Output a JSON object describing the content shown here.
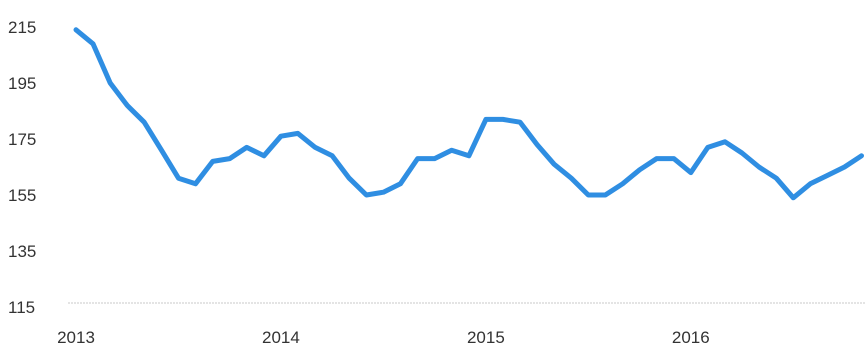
{
  "chart_data": {
    "type": "line",
    "title": "",
    "xlabel": "",
    "ylabel": "",
    "grid": false,
    "legend": "none",
    "ylim": [
      115,
      215
    ],
    "xlim": [
      2013,
      2016.85
    ],
    "y_ticks": [
      215,
      195,
      175,
      155,
      135,
      115
    ],
    "x_ticks": [
      2013,
      2014,
      2015,
      2016
    ],
    "series": [
      {
        "color": "#2f8ee2",
        "x": [
          2013.0,
          2013.083,
          2013.167,
          2013.25,
          2013.333,
          2013.417,
          2013.5,
          2013.583,
          2013.667,
          2013.75,
          2013.833,
          2013.917,
          2014.0,
          2014.083,
          2014.167,
          2014.25,
          2014.333,
          2014.417,
          2014.5,
          2014.583,
          2014.667,
          2014.75,
          2014.833,
          2014.917,
          2015.0,
          2015.083,
          2015.167,
          2015.25,
          2015.333,
          2015.417,
          2015.5,
          2015.583,
          2015.667,
          2015.75,
          2015.833,
          2015.917,
          2016.0,
          2016.083,
          2016.167,
          2016.25,
          2016.333,
          2016.417,
          2016.5,
          2016.583,
          2016.667,
          2016.75,
          2016.833
        ],
        "y": [
          214,
          209,
          195,
          187,
          181,
          171,
          161,
          159,
          167,
          168,
          172,
          169,
          176,
          177,
          172,
          169,
          161,
          155,
          156,
          159,
          168,
          168,
          171,
          169,
          182,
          182,
          181,
          173,
          166,
          161,
          155,
          155,
          159,
          164,
          168,
          168,
          163,
          172,
          174,
          170,
          165,
          161,
          154,
          159,
          162,
          165,
          169
        ]
      }
    ]
  }
}
